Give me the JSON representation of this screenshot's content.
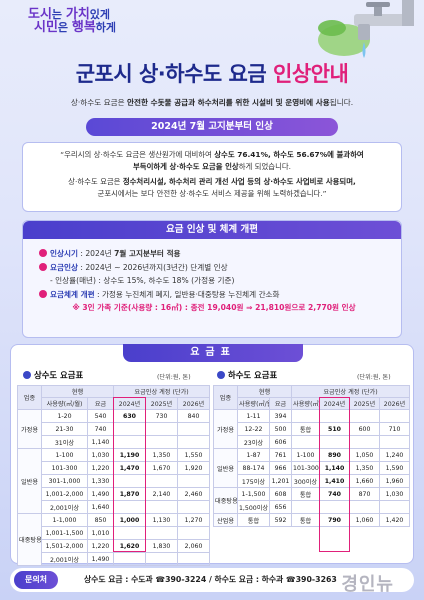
{
  "slogan": {
    "line1_a": "도시",
    "line1_b": "는 ",
    "line1_c": "가치",
    "line1_d": "있게",
    "line2_a": "시민",
    "line2_b": "은 ",
    "line2_c": "행복",
    "line2_d": "하게"
  },
  "title": {
    "main": "군포시 상·하수도 요금 ",
    "accent": "인상안내"
  },
  "intro": {
    "pre": "상·하수도 요금은 ",
    "bold": "안전한 수돗물 공급과 하수처리를 위한 시설비 및 운영비에 사용",
    "post": "됩니다."
  },
  "banner": "2024년 7월 고지분부터 인상",
  "quote": {
    "p1_a": "“우리시의 상·하수도 요금은 생산원가에 대비하여 ",
    "p1_b": "상수도 76.41%, 하수도 56.67%에 불과하여",
    "p1_c": "부득이하게 상·하수도 요금을 인상",
    "p1_d": "하게 되었습니다.",
    "p2_a": "상·하수도 요금은 ",
    "p2_b": "정수처리시설, 하수처리 관리 개선 사업 등의 상·하수도 사업비로 사용되며,",
    "p2_c": "군포시에서는 보다 안전한 상·하수도 서비스 제공을 위해 노력하겠습니다.”"
  },
  "reform": {
    "title": "요금 인상 및 체계 개편",
    "items": [
      {
        "key": "인상시기",
        "text_a": " : 2024년 ",
        "text_b": "7월 고지분부터 적용"
      },
      {
        "key": "요금인상",
        "text_a": " : 2024년 ~ 2026년까지(3년간) 단계별 인상",
        "text_b": ""
      },
      {
        "key": "",
        "text_a": "- 인상률(매년) : 상수도 15%, 하수도 18% (가정용 기준)",
        "text_b": ""
      },
      {
        "key": "요금체계 개편",
        "text_a": " : 가정용 누진체계 폐지, 일반용·대중탕용 누진체계 간소화",
        "text_b": ""
      }
    ],
    "note": "※ 3인 가족 기준(사용량 : 16㎥) : 종전 19,040원 ⇒ 21,810원으로 2,770원 인상"
  },
  "rate_table": {
    "title": "요금표",
    "water": {
      "title": "상수도 요금표",
      "unit": "(단위:원, 톤)",
      "h_type": "업종",
      "h_section": "현행",
      "h_usage": "사용량(㎥/월)",
      "h_rate": "요금",
      "h_adjust": "요금인상 계정 (단가)",
      "years": [
        "2024년",
        "2025년",
        "2026년"
      ],
      "groups": [
        {
          "name": "가정용",
          "rows": [
            {
              "usage": "1-20",
              "rate": "540",
              "y24": "630",
              "y25": "730",
              "y26": "840"
            },
            {
              "usage": "21-30",
              "rate": "740",
              "y24": "",
              "y25": "",
              "y26": ""
            },
            {
              "usage": "31이상",
              "rate": "1,140",
              "y24": "",
              "y25": "",
              "y26": ""
            }
          ]
        },
        {
          "name": "일반용",
          "rows": [
            {
              "usage": "1-100",
              "rate": "1,030",
              "y24": "1,190",
              "y25": "1,350",
              "y26": "1,550"
            },
            {
              "usage": "101-300",
              "rate": "1,220",
              "y24": "1,470",
              "y25": "1,670",
              "y26": "1,920"
            },
            {
              "usage": "301-1,000",
              "rate": "1,330",
              "y24": "",
              "y25": "",
              "y26": ""
            },
            {
              "usage": "1,001-2,000",
              "rate": "1,490",
              "y24": "1,870",
              "y25": "2,140",
              "y26": "2,460"
            },
            {
              "usage": "2,001이상",
              "rate": "1,640",
              "y24": "",
              "y25": "",
              "y26": ""
            }
          ]
        },
        {
          "name": "대중탕용",
          "rows": [
            {
              "usage": "1-1,000",
              "rate": "850",
              "y24": "1,000",
              "y25": "1,130",
              "y26": "1,270"
            },
            {
              "usage": "1,001-1,500",
              "rate": "1,010",
              "y24": "",
              "y25": "",
              "y26": ""
            },
            {
              "usage": "1,501-2,000",
              "rate": "1,220",
              "y24": "1,620",
              "y25": "1,830",
              "y26": "2,060"
            },
            {
              "usage": "2,001이상",
              "rate": "1,490",
              "y24": "",
              "y25": "",
              "y26": ""
            }
          ]
        }
      ]
    },
    "sewer": {
      "title": "하수도 요금표",
      "unit": "(단위:원, 톤)",
      "h_type": "업종",
      "h_section": "현행",
      "h_usage": "사용량(㎥/월)",
      "h_rate": "요금",
      "h_adjust": "요금인상 계정 (단가)",
      "years": [
        "2024년",
        "2025년",
        "2026년"
      ],
      "groups": [
        {
          "name": "가정용",
          "rows": [
            {
              "usage": "1-11",
              "rate": "394",
              "new_usage": "",
              "y24": "",
              "y25": "",
              "y26": ""
            },
            {
              "usage": "12-22",
              "rate": "500",
              "new_usage": "통합",
              "y24": "510",
              "y25": "600",
              "y26": "710"
            },
            {
              "usage": "23이상",
              "rate": "606",
              "new_usage": "",
              "y24": "",
              "y25": "",
              "y26": ""
            }
          ]
        },
        {
          "name": "일반용",
          "rows": [
            {
              "usage": "1-87",
              "rate": "761",
              "new_usage": "1-100",
              "y24": "890",
              "y25": "1,050",
              "y26": "1,240"
            },
            {
              "usage": "88-174",
              "rate": "966",
              "new_usage": "101-300",
              "y24": "1,140",
              "y25": "1,350",
              "y26": "1,590"
            },
            {
              "usage": "175이상",
              "rate": "1,201",
              "new_usage": "300이상",
              "y24": "1,410",
              "y25": "1,660",
              "y26": "1,960"
            }
          ]
        },
        {
          "name": "대중탕용",
          "rows": [
            {
              "usage": "1-1,500",
              "rate": "608",
              "new_usage": "통합",
              "y24": "740",
              "y25": "870",
              "y26": "1,030"
            },
            {
              "usage": "1,500이상",
              "rate": "656",
              "new_usage": "",
              "y24": "",
              "y25": "",
              "y26": ""
            }
          ]
        },
        {
          "name": "산업용",
          "rows": [
            {
              "usage": "통합",
              "rate": "592",
              "new_usage": "통합",
              "y24": "790",
              "y25": "1,060",
              "y26": "1,420"
            }
          ]
        }
      ]
    }
  },
  "footer": {
    "tag": "문의처",
    "text": "상수도 요금 : 수도과 ☎390-3224 / 하수도 요금 : 하수과 ☎390-3263"
  },
  "watermark": "경인뉴"
}
